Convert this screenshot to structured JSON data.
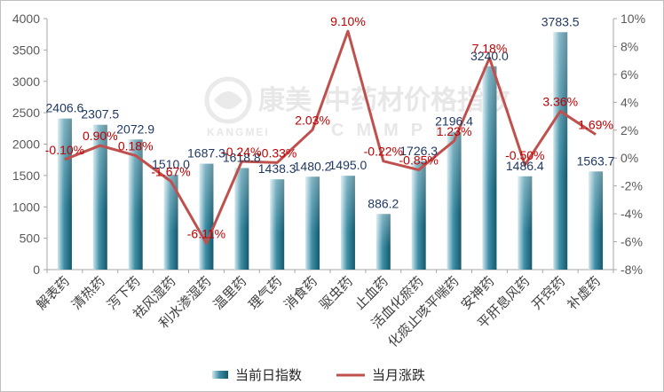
{
  "chart_data": {
    "type": "bar",
    "categories": [
      "解表药",
      "清热药",
      "泻下药",
      "祛风湿药",
      "利水渗湿药",
      "温里药",
      "理气药",
      "消食药",
      "驱虫药",
      "止血药",
      "活血化瘀药",
      "化痰止咳平喘药",
      "安神药",
      "平肝息风药",
      "开窍药",
      "补虚药"
    ],
    "series": [
      {
        "name": "当前日指数",
        "type": "bar",
        "axis": "left",
        "values": [
          2406.6,
          2307.5,
          2072.9,
          1510.0,
          1687.3,
          1618.8,
          1438.3,
          1480.2,
          1495.0,
          886.2,
          1726.3,
          2196.4,
          3240.0,
          1486.4,
          3783.5,
          1563.7
        ],
        "labels": [
          "2406.6",
          "2307.5",
          "2072.9",
          "1510.0",
          "1687.3",
          "1618.8",
          "1438.3",
          "1480.2",
          "1495.0",
          "886.2",
          "1726.3",
          "2196.4",
          "3240.0",
          "1486.4",
          "3783.5",
          "1563.7"
        ],
        "color": "#1f6f84"
      },
      {
        "name": "当月涨跌",
        "type": "line",
        "axis": "right",
        "values": [
          -0.1,
          0.9,
          0.18,
          -1.67,
          -6.11,
          -0.24,
          -0.33,
          2.03,
          9.1,
          -0.22,
          -0.85,
          1.23,
          7.18,
          -0.5,
          3.36,
          1.69
        ],
        "labels": [
          "-0.10%",
          "0.90%",
          "0.18%",
          "-1.67%",
          "-6.11%",
          "-0.24%",
          "-0.33%",
          "2.03%",
          "9.10%",
          "-0.22%",
          "-0.85%",
          "1.23%",
          "7.18%",
          "-0.50%",
          "3.36%",
          "1.69%"
        ],
        "color": "#c0504d"
      }
    ],
    "ylim": [
      0,
      4000
    ],
    "yticks": [
      "0",
      "500",
      "1000",
      "1500",
      "2000",
      "2500",
      "3000",
      "3500",
      "4000"
    ],
    "ylim_right": [
      -8,
      10
    ],
    "yticks_right": [
      "-8%",
      "-6%",
      "-4%",
      "-2%",
      "0%",
      "2%",
      "4%",
      "6%",
      "8%",
      "10%"
    ],
    "grid": false,
    "legend_position": "bottom"
  },
  "watermark": {
    "brand_cn": "康美",
    "text_cn": "中药材价格指数",
    "brand_en": "KANGMEI",
    "text_en": "CMMPI"
  }
}
